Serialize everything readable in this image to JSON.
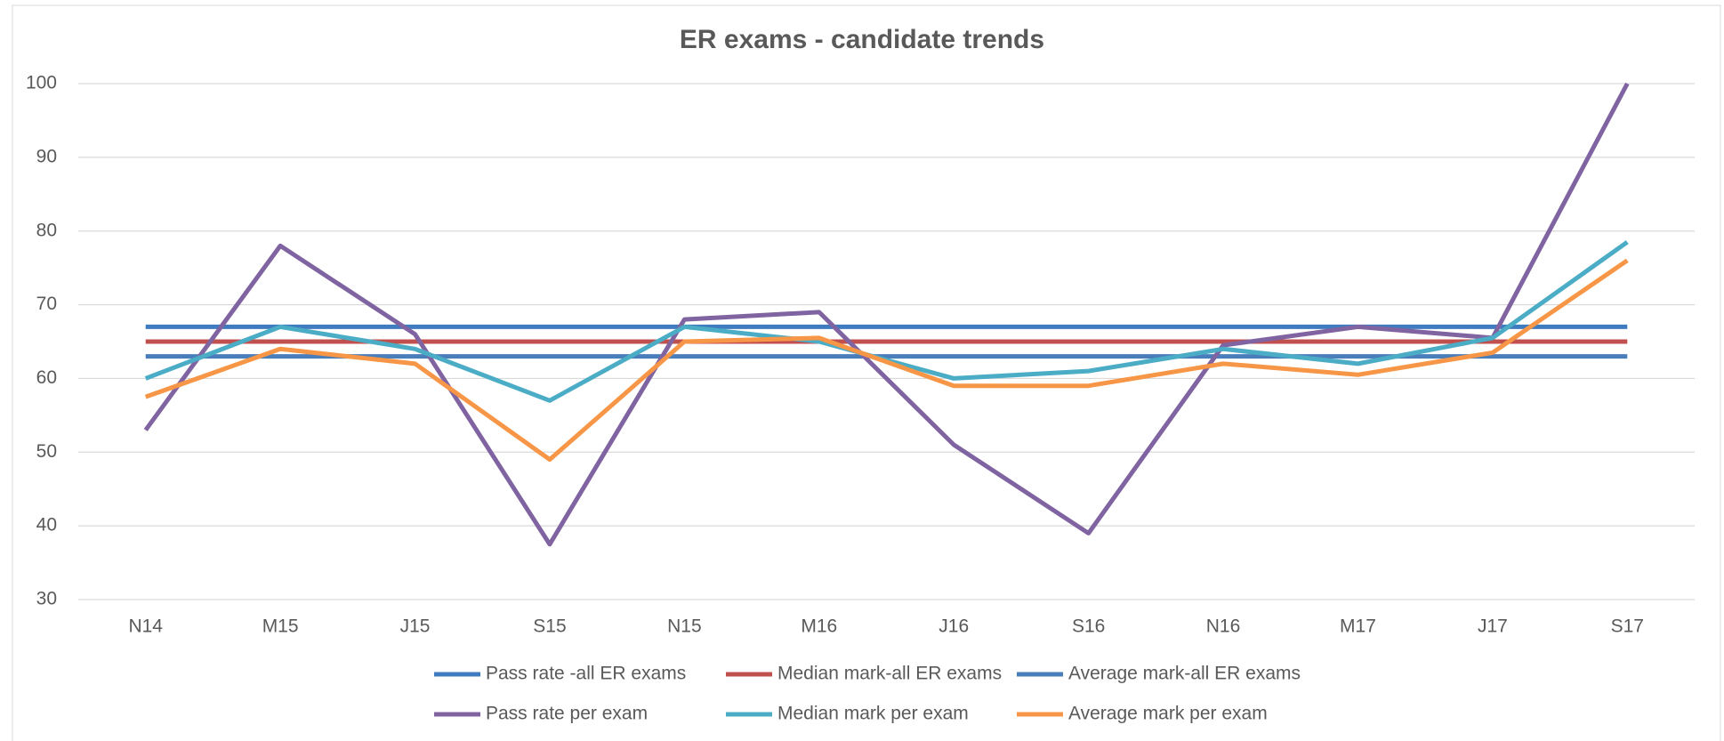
{
  "chart_data": {
    "type": "line",
    "title": "ER exams - candidate trends",
    "categories": [
      "N14",
      "M15",
      "J15",
      "S15",
      "N15",
      "M16",
      "J16",
      "S16",
      "N16",
      "M17",
      "J17",
      "S17"
    ],
    "ylim": [
      30,
      100
    ],
    "yticks": [
      30,
      40,
      50,
      60,
      70,
      80,
      90,
      100
    ],
    "grid": true,
    "legend": "bottom",
    "series": [
      {
        "name": "Pass rate -all ER exams",
        "color": "#3F7CBF",
        "values": [
          67,
          67,
          67,
          67,
          67,
          67,
          67,
          67,
          67,
          67,
          67,
          67
        ]
      },
      {
        "name": "Median mark-all ER exams",
        "color": "#C0504D",
        "values": [
          65,
          65,
          65,
          65,
          65,
          65,
          65,
          65,
          65,
          65,
          65,
          65
        ]
      },
      {
        "name": "Average mark-all ER exams",
        "color": "#4A7EBB",
        "values": [
          63,
          63,
          63,
          63,
          63,
          63,
          63,
          63,
          63,
          63,
          63,
          63
        ]
      },
      {
        "name": "Pass rate per exam",
        "color": "#8064A2",
        "values": [
          53,
          78,
          66,
          37.5,
          68,
          69,
          51,
          39,
          64.5,
          67,
          65.5,
          100
        ]
      },
      {
        "name": "Median mark per exam",
        "color": "#4BACC6",
        "values": [
          60,
          67,
          64,
          57,
          67,
          65,
          60,
          61,
          64,
          62,
          65.5,
          78.5
        ]
      },
      {
        "name": "Average mark per exam",
        "color": "#F79646",
        "values": [
          57.5,
          64,
          62,
          49,
          65,
          65.5,
          59,
          59,
          62,
          60.5,
          63.5,
          76
        ]
      }
    ]
  }
}
